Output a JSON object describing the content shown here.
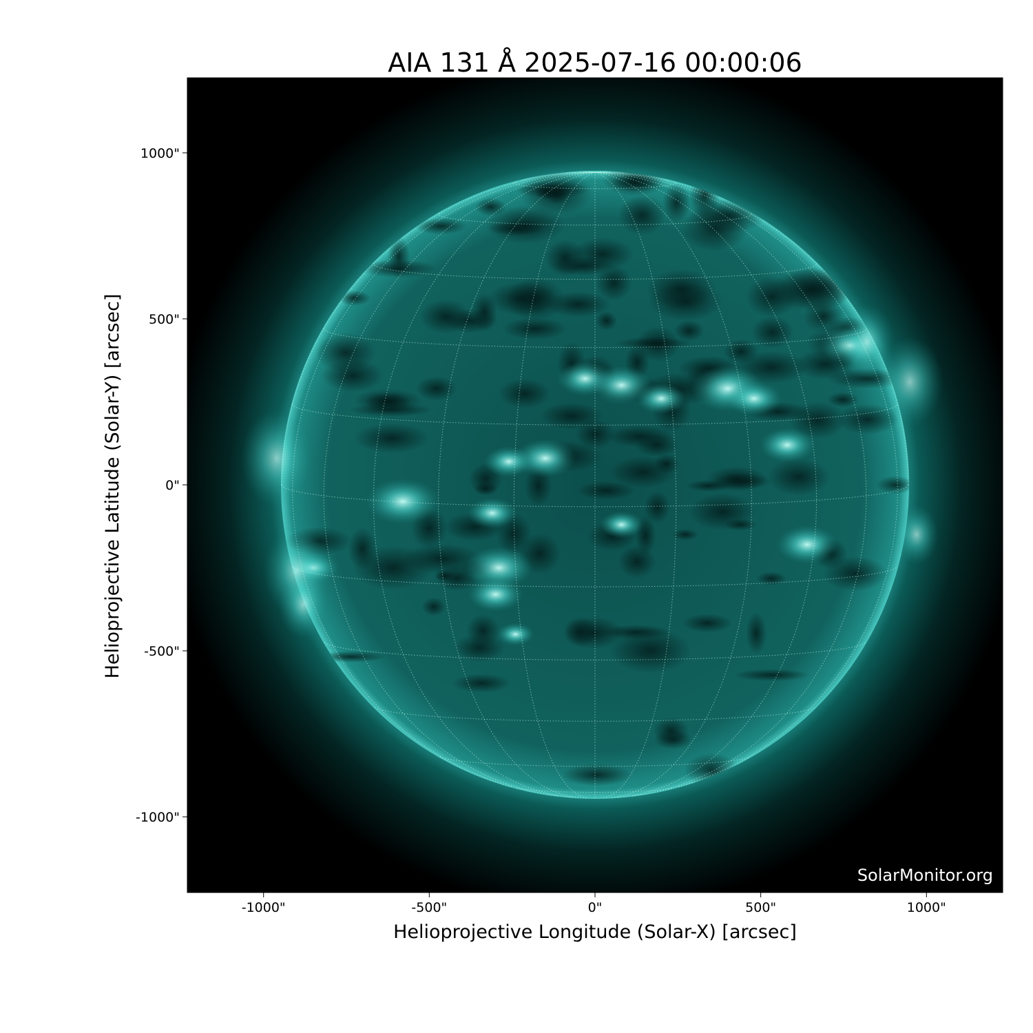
{
  "chart_data": {
    "type": "heatmap",
    "title": "AIA 131 Å 2025-07-16 00:00:06",
    "xlabel": "Helioprojective Longitude (Solar-X) [arcsec]",
    "ylabel": "Helioprojective Latitude (Solar-Y) [arcsec]",
    "xlim": [
      -1230,
      1230
    ],
    "ylim": [
      -1228,
      1226
    ],
    "xticks": [
      -1000,
      -500,
      0,
      500,
      1000
    ],
    "yticks": [
      -1000,
      -500,
      0,
      500,
      1000
    ],
    "xtick_labels": [
      "-1000\"",
      "-500\"",
      "0\"",
      "500\"",
      "1000\""
    ],
    "ytick_labels": [
      "-1000\"",
      "-500\"",
      "0\"",
      "500\"",
      "1000\""
    ],
    "solar_radius_arcsec": 945,
    "grid_spacing_deg": 15,
    "colormap": "sdoaia131 (black-teal-white)",
    "disk_color": "#0f6e6a",
    "bright_color": "#9ffff5",
    "watermark": "SolarMonitor.org"
  }
}
